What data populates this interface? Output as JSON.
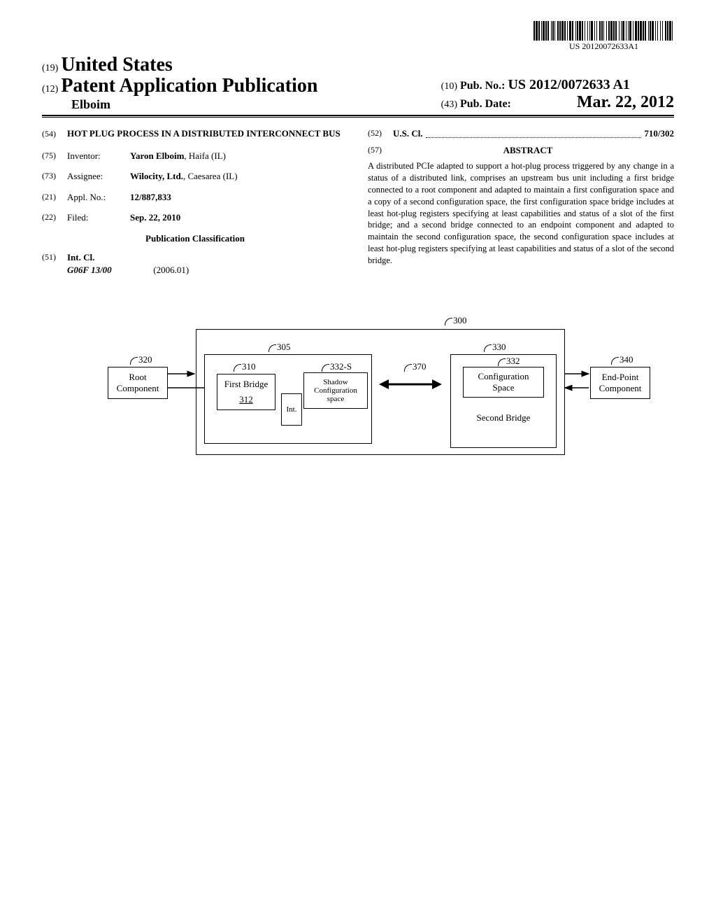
{
  "barcode": {
    "text": "US 20120072633A1",
    "bar_widths": [
      2,
      1,
      3,
      1,
      2,
      2,
      1,
      1,
      3,
      1,
      2,
      1,
      2,
      3,
      1,
      1,
      2,
      1,
      1,
      3,
      2,
      1,
      2,
      1,
      3,
      1,
      2,
      2,
      1,
      2,
      3,
      1,
      2,
      3,
      1,
      1,
      2,
      1,
      3,
      1,
      2,
      2,
      1,
      3,
      1,
      2,
      1,
      1,
      3,
      2,
      1,
      2,
      1,
      3,
      2,
      1,
      2,
      1,
      1,
      3,
      1,
      2,
      2,
      1,
      3,
      1,
      2,
      1,
      2,
      3,
      1,
      2,
      1,
      1,
      3,
      2,
      1,
      2,
      1,
      1,
      3,
      2,
      1,
      2,
      3,
      1,
      2,
      1,
      3,
      1,
      2,
      1,
      2,
      3,
      1,
      1,
      2,
      1,
      3,
      2,
      1,
      2,
      1,
      3,
      1,
      2,
      1,
      3,
      2,
      1,
      2,
      1,
      3,
      1,
      1,
      2
    ]
  },
  "header": {
    "prefix19": "(19)",
    "country": "United States",
    "prefix12": "(12)",
    "pubtype": "Patent Application Publication",
    "inventor_header": "Elboim",
    "pubno_prefix": "(10)",
    "pubno_label": "Pub. No.:",
    "pubno_value": "US 2012/0072633 A1",
    "pubdate_prefix": "(43)",
    "pubdate_label": "Pub. Date:",
    "pubdate_value": "Mar. 22, 2012"
  },
  "biblio": {
    "title_code": "(54)",
    "title": "HOT PLUG PROCESS IN A DISTRIBUTED INTERCONNECT BUS",
    "inventor_code": "(75)",
    "inventor_label": "Inventor:",
    "inventor_value": "Yaron Elboim",
    "inventor_suffix": ", Haifa (IL)",
    "assignee_code": "(73)",
    "assignee_label": "Assignee:",
    "assignee_value": "Wilocity, Ltd.",
    "assignee_suffix": ", Caesarea (IL)",
    "applno_code": "(21)",
    "applno_label": "Appl. No.:",
    "applno_value": "12/887,833",
    "filed_code": "(22)",
    "filed_label": "Filed:",
    "filed_value": "Sep. 22, 2010",
    "pubclass_heading": "Publication Classification",
    "intcl_code": "(51)",
    "intcl_label": "Int. Cl.",
    "intcl_class": "G06F 13/00",
    "intcl_year": "(2006.01)",
    "uscl_code": "(52)",
    "uscl_label": "U.S. Cl.",
    "uscl_value": "710/302"
  },
  "abstract": {
    "code": "(57)",
    "heading": "ABSTRACT",
    "text": "A distributed PCIe adapted to support a hot-plug process triggered by any change in a status of a distributed link, comprises an upstream bus unit including a first bridge connected to a root component and adapted to maintain a first configuration space and a copy of a second configuration space, the first configuration space bridge includes at least hot-plug registers specifying at least capabilities and status of a slot of the first bridge; and a second bridge connected to an endpoint component and adapted to maintain the second configuration space, the second configuration space includes at least hot-plug registers specifying at least capabilities and status of a slot of the second bridge."
  },
  "figure": {
    "labels": {
      "n300": "300",
      "n305": "305",
      "n310": "310",
      "n312": "312",
      "n320": "320",
      "n330": "330",
      "n332": "332",
      "n332s": "332-S",
      "n340": "340",
      "n370": "370"
    },
    "boxes": {
      "root": {
        "line1": "Root",
        "line2": "Component"
      },
      "first_bridge": "First Bridge",
      "int": "Int.",
      "shadow": {
        "line1": "Shadow",
        "line2": "Configuration",
        "line3": "space"
      },
      "config": {
        "line1": "Configuration",
        "line2": "Space"
      },
      "second_bridge": "Second Bridge",
      "endpoint": {
        "line1": "End-Point",
        "line2": "Component"
      }
    },
    "colors": {
      "stroke": "#000000",
      "fill": "#ffffff"
    }
  }
}
